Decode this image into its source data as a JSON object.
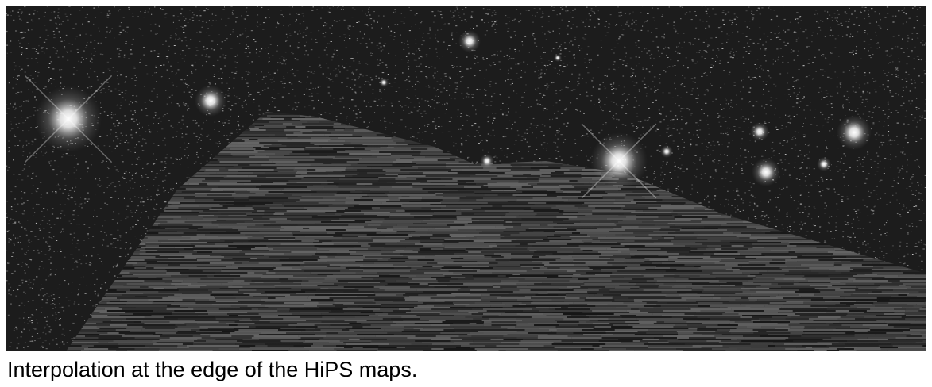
{
  "figure": {
    "caption": "Interpolation at the edge of the HiPS maps.",
    "colors": {
      "sky_background": "#1c1c1c",
      "noise_light": "#d8d8d8",
      "band_dark": "#141414",
      "band_light": "#8a8a8a",
      "star_core": "#ffffff"
    }
  }
}
